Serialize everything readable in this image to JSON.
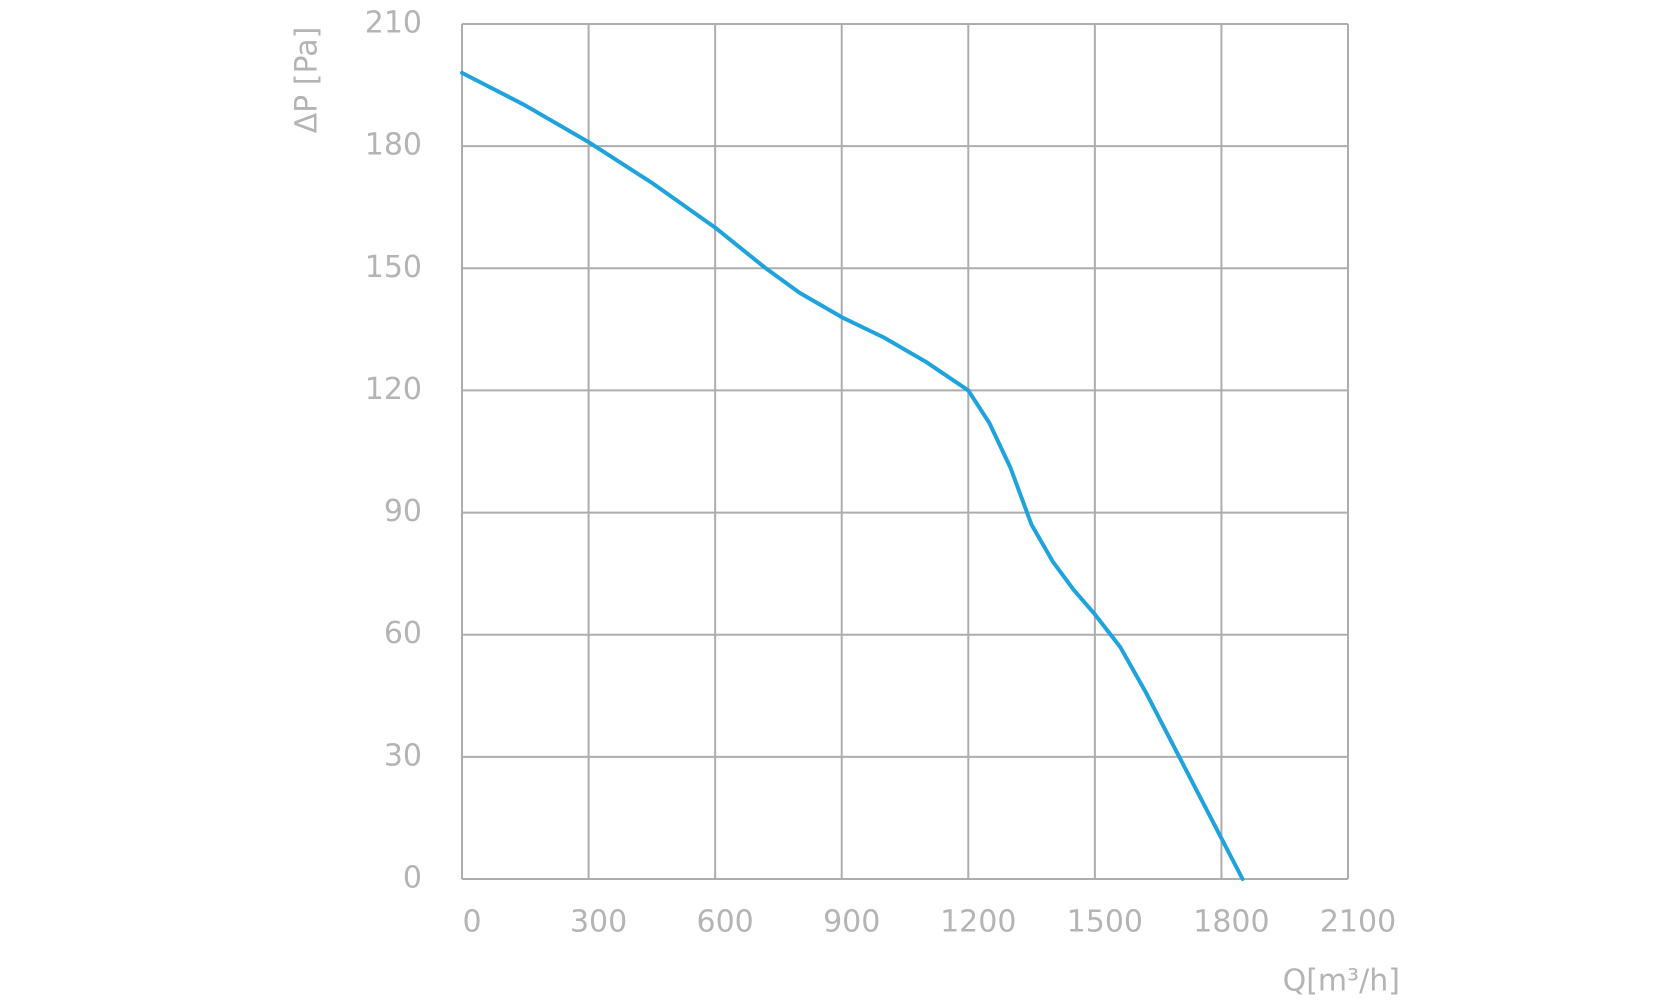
{
  "chart_data": {
    "type": "line",
    "x_label": "Q[m³/h]",
    "y_label": "ΔP [Pa]",
    "x": [
      0,
      150,
      300,
      450,
      600,
      720,
      800,
      900,
      1000,
      1100,
      1200,
      1250,
      1300,
      1350,
      1400,
      1450,
      1500,
      1560,
      1620,
      1700,
      1760,
      1800,
      1850
    ],
    "series": [
      {
        "name": "ΔP",
        "color": "#1fa3dc",
        "values": [
          198,
          190,
          181,
          171,
          160,
          150,
          144,
          138,
          133,
          127,
          120,
          112,
          101,
          87,
          78,
          71,
          65,
          57,
          46,
          30,
          18,
          10,
          0
        ]
      }
    ],
    "xlim": [
      0,
      2100
    ],
    "xticks": [
      0,
      300,
      600,
      900,
      1200,
      1500,
      1800,
      2100
    ],
    "ylim": [
      0,
      210
    ],
    "yticks": [
      0,
      30,
      60,
      90,
      120,
      150,
      180,
      210
    ],
    "grid": true
  }
}
